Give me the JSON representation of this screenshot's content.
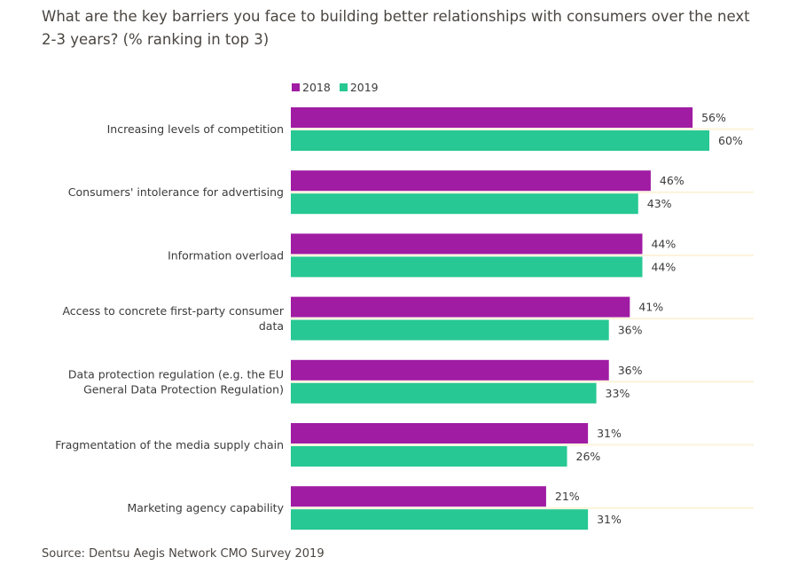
{
  "chart_data": {
    "type": "bar",
    "orientation": "horizontal",
    "title": "What are the key barriers you face to building better relationships with consumers over the next 2-3 years? (% ranking in top 3)",
    "source": "Source: Dentsu Aegis Network CMO Survey 2019",
    "xlabel": "",
    "ylabel": "",
    "xlim": [
      -40,
      60
    ],
    "grid": true,
    "legend_position": "top-left",
    "categories": [
      [
        "Increasing levels of competition"
      ],
      [
        "Consumers' intolerance for advertising"
      ],
      [
        "Information overload"
      ],
      [
        "Access to concrete first-party consumer",
        "data"
      ],
      [
        "Data protection regulation (e.g. the EU",
        "General Data Protection Regulation)"
      ],
      [
        "Fragmentation of the media supply chain"
      ],
      [
        "Marketing agency capability"
      ]
    ],
    "series": [
      {
        "name": "2018",
        "color": "#a01ca3",
        "values": [
          56,
          46,
          44,
          41,
          36,
          31,
          21
        ]
      },
      {
        "name": "2019",
        "color": "#27c893",
        "values": [
          60,
          43,
          44,
          36,
          33,
          26,
          31
        ]
      }
    ],
    "value_suffix": "%"
  }
}
